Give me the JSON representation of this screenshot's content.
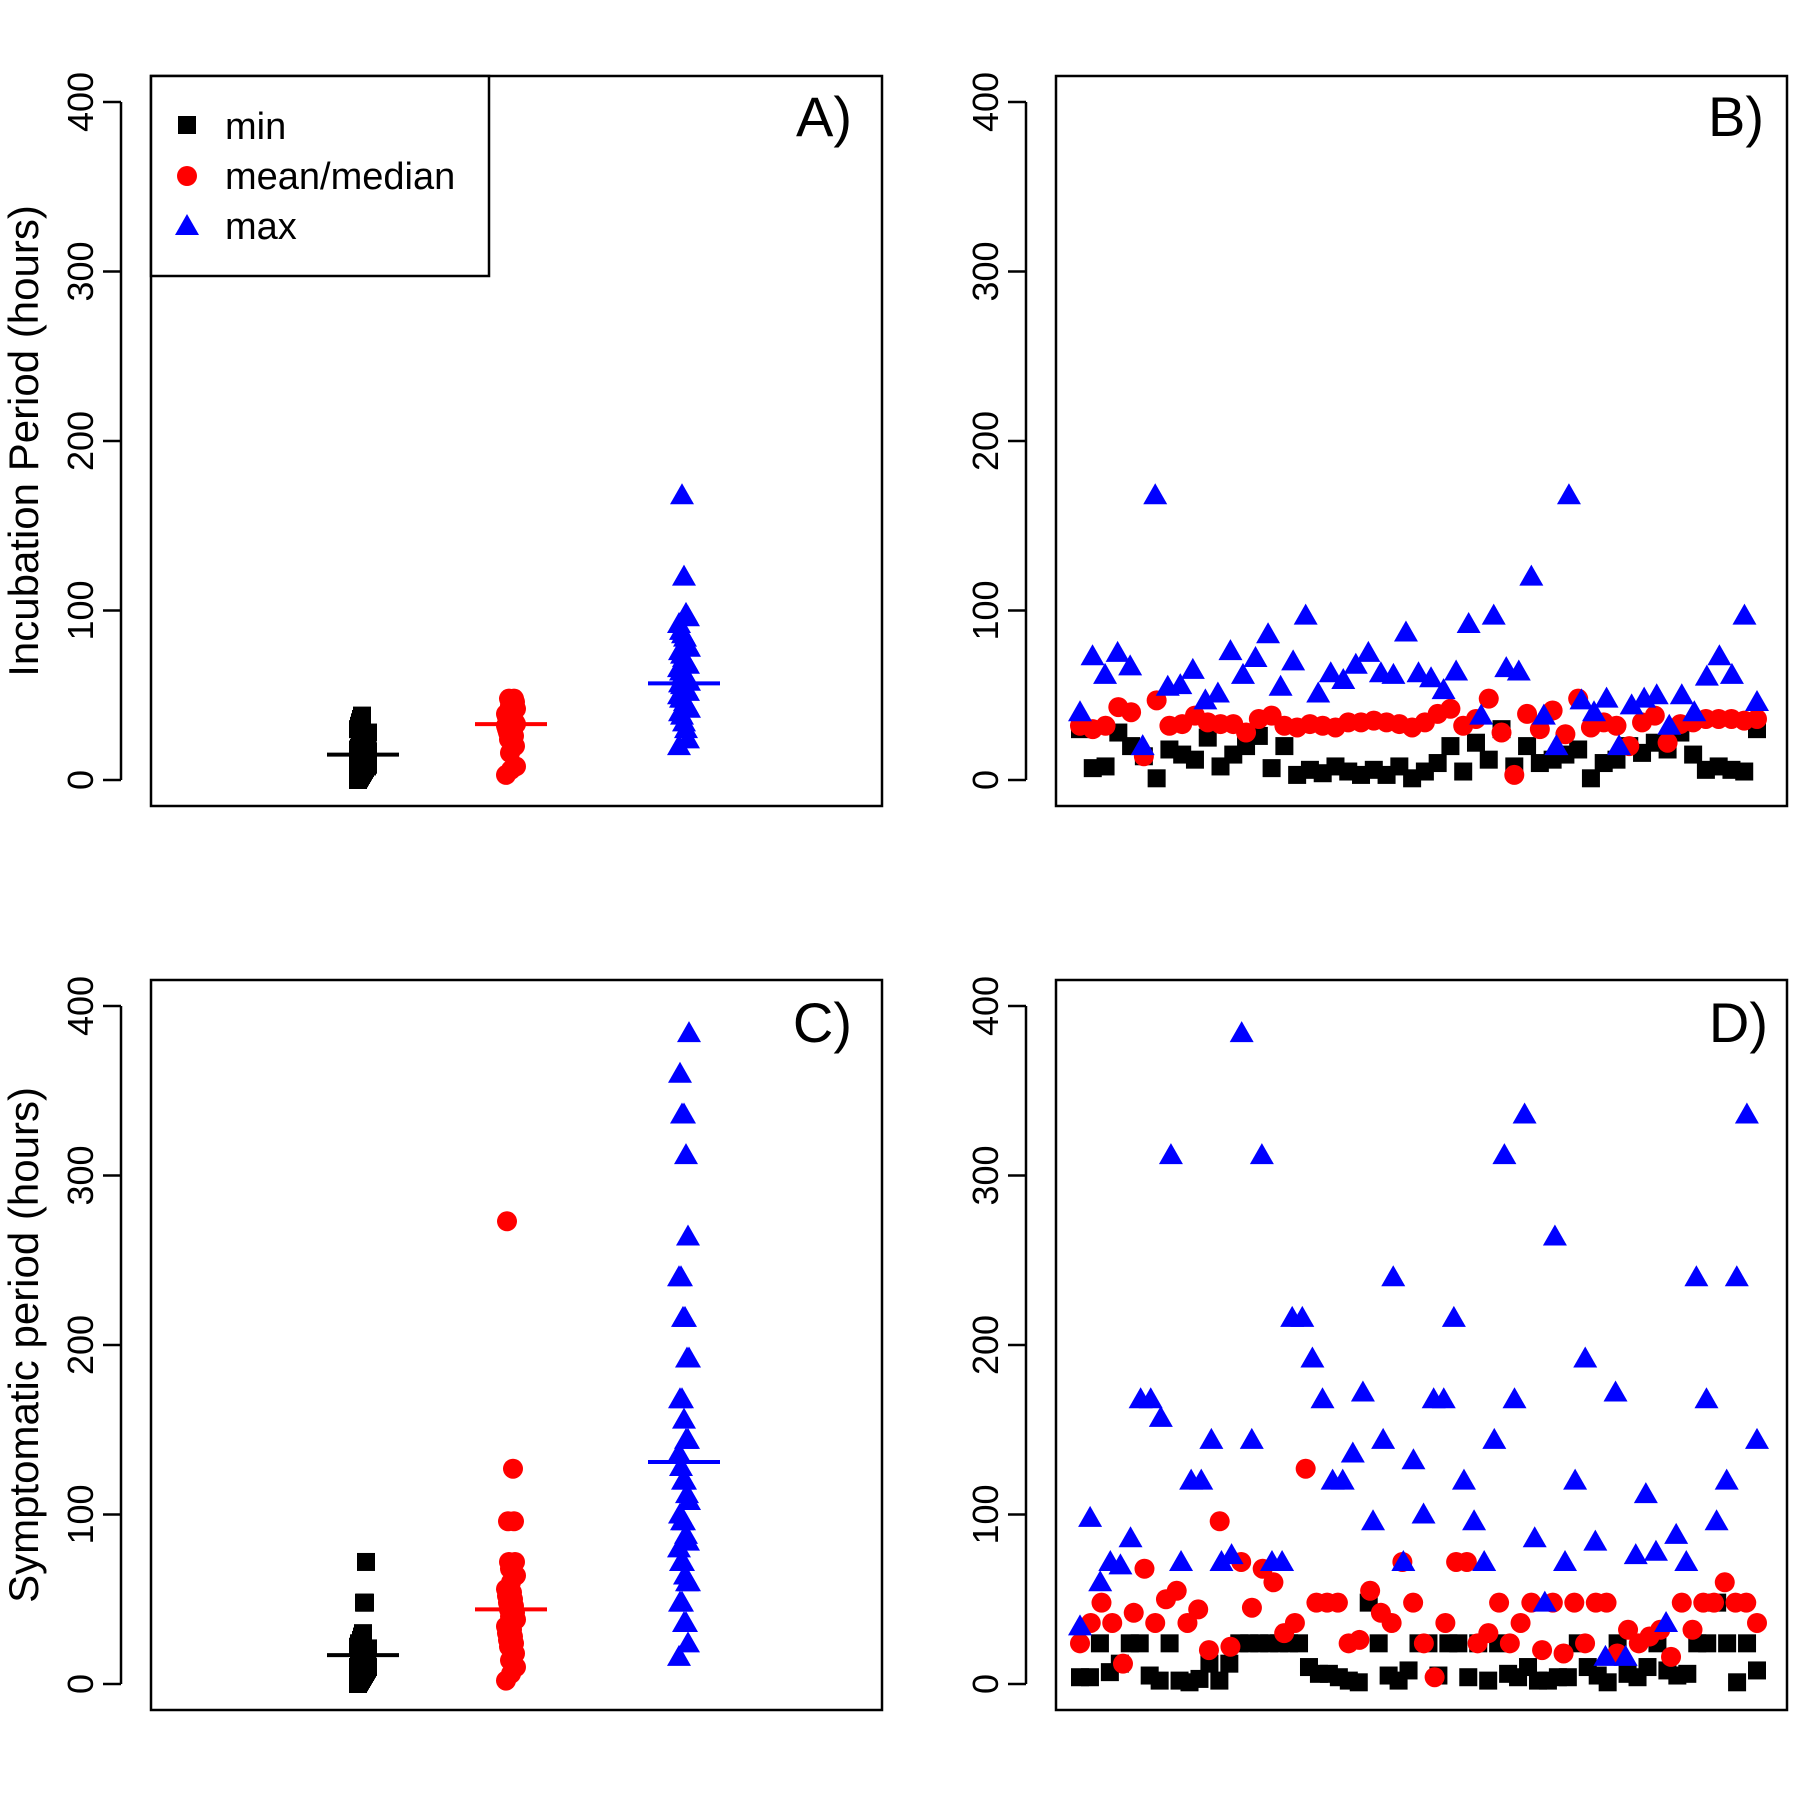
{
  "chart_data": [
    {
      "panel": "A)",
      "type": "scatter",
      "ylabel": "Incubation Period (hours)",
      "ylim": [
        0,
        400
      ],
      "yticks": [
        "0",
        "100",
        "200",
        "300",
        "400"
      ],
      "grid": false,
      "legend": {
        "placement": "top-left",
        "entries": [
          {
            "label": "min",
            "color": "#000000",
            "shape": "square"
          },
          {
            "label": "mean/median",
            "color": "#ff0000",
            "shape": "circle"
          },
          {
            "label": "max",
            "color": "#0000ff",
            "shape": "triangle"
          }
        ]
      },
      "series": [
        {
          "key": "min",
          "color": "#000000",
          "shape": "square",
          "median": 15,
          "values": [
            0,
            1,
            2,
            3,
            4,
            5,
            6,
            7,
            8,
            8,
            9,
            10,
            10,
            11,
            12,
            12,
            13,
            14,
            15,
            15,
            16,
            17,
            18,
            19,
            20,
            20,
            21,
            22,
            23,
            24,
            25,
            26,
            28,
            30,
            32,
            34,
            36,
            38
          ]
        },
        {
          "key": "mean",
          "color": "#ff0000",
          "shape": "circle",
          "median": 33,
          "values": [
            3,
            6,
            8,
            16,
            20,
            24,
            26,
            28,
            29,
            30,
            31,
            32,
            32,
            33,
            33,
            34,
            34,
            35,
            35,
            36,
            37,
            38,
            39,
            40,
            42,
            44,
            46,
            48,
            48
          ]
        },
        {
          "key": "max",
          "color": "#0000ff",
          "shape": "triangle",
          "median": 57,
          "values": [
            20,
            24,
            30,
            34,
            38,
            40,
            42,
            44,
            46,
            48,
            48,
            50,
            52,
            54,
            55,
            56,
            57,
            58,
            60,
            62,
            62,
            64,
            66,
            68,
            70,
            72,
            74,
            76,
            78,
            80,
            84,
            86,
            88,
            92,
            96,
            98,
            120,
            168
          ]
        }
      ]
    },
    {
      "panel": "B)",
      "type": "scatter",
      "ylim": [
        0,
        400
      ],
      "yticks": [
        "0",
        "100",
        "200",
        "300",
        "400"
      ],
      "grid": false,
      "series": [
        {
          "key": "min",
          "color": "#000000",
          "shape": "square",
          "values": [
            30,
            7,
            8,
            28,
            20,
            14,
            1,
            18,
            15,
            12,
            25,
            8,
            15,
            20,
            26,
            7,
            20,
            3,
            6,
            4,
            8,
            5,
            3,
            6,
            3,
            8,
            1,
            5,
            10,
            20,
            5,
            22,
            12,
            30,
            8,
            20,
            10,
            12,
            15,
            18,
            1,
            10,
            12,
            20,
            16,
            22,
            18,
            28,
            15,
            6,
            8,
            6,
            5,
            30
          ]
        },
        {
          "key": "mean",
          "color": "#ff0000",
          "shape": "circle",
          "values": [
            32,
            30,
            32,
            43,
            40,
            14,
            47,
            32,
            33,
            38,
            34,
            33,
            33,
            28,
            36,
            38,
            32,
            31,
            33,
            32,
            31,
            34,
            34,
            35,
            34,
            33,
            31,
            34,
            39,
            42,
            32,
            36,
            48,
            28,
            3,
            39,
            30,
            41,
            27,
            48,
            31,
            34,
            32,
            20,
            34,
            38,
            22,
            33,
            34,
            36,
            36,
            36,
            35,
            36
          ]
        },
        {
          "key": "max",
          "color": "#0000ff",
          "shape": "triangle",
          "values": [
            40,
            73,
            62,
            75,
            67,
            20,
            168,
            55,
            56,
            65,
            47,
            51,
            76,
            62,
            72,
            86,
            55,
            70,
            97,
            51,
            63,
            59,
            68,
            75,
            63,
            62,
            87,
            63,
            60,
            53,
            64,
            92,
            38,
            97,
            66,
            64,
            120,
            38,
            20,
            168,
            47,
            40,
            48,
            20,
            44,
            48,
            50,
            32,
            50,
            40,
            61,
            73,
            62,
            97,
            46
          ]
        }
      ]
    },
    {
      "panel": "C)",
      "type": "scatter",
      "ylabel": "Symptomatic period (hours)",
      "ylim": [
        0,
        400
      ],
      "yticks": [
        "0",
        "100",
        "200",
        "300",
        "400"
      ],
      "grid": false,
      "series": [
        {
          "key": "min",
          "color": "#000000",
          "shape": "square",
          "median": 17,
          "values": [
            0,
            1,
            2,
            3,
            4,
            5,
            6,
            7,
            8,
            9,
            10,
            10,
            11,
            12,
            13,
            14,
            15,
            16,
            17,
            18,
            20,
            21,
            22,
            24,
            24,
            26,
            28,
            30,
            48,
            48,
            72
          ]
        },
        {
          "key": "mean",
          "color": "#ff0000",
          "shape": "circle",
          "median": 44,
          "values": [
            2,
            6,
            10,
            14,
            18,
            22,
            24,
            26,
            28,
            30,
            32,
            34,
            36,
            38,
            40,
            42,
            44,
            46,
            48,
            50,
            52,
            54,
            56,
            60,
            64,
            68,
            72,
            72,
            96,
            96,
            127,
            273
          ]
        },
        {
          "key": "max",
          "color": "#0000ff",
          "shape": "triangle",
          "median": 131,
          "values": [
            16,
            24,
            36,
            36,
            48,
            48,
            60,
            60,
            64,
            72,
            72,
            80,
            84,
            88,
            96,
            96,
            100,
            108,
            112,
            120,
            120,
            128,
            136,
            144,
            144,
            156,
            168,
            168,
            192,
            192,
            216,
            216,
            240,
            240,
            264,
            312,
            336,
            336,
            360,
            384
          ]
        }
      ]
    },
    {
      "panel": "D)",
      "type": "scatter",
      "ylim": [
        0,
        400
      ],
      "yticks": [
        "0",
        "100",
        "200",
        "300",
        "400"
      ],
      "grid": false,
      "series": [
        {
          "key": "min",
          "color": "#000000",
          "shape": "square",
          "values": [
            4,
            4,
            24,
            7,
            12,
            24,
            24,
            5,
            2,
            24,
            2,
            1,
            3,
            12,
            2,
            12,
            24,
            24,
            24,
            24,
            24,
            24,
            24,
            10,
            6,
            6,
            4,
            2,
            1,
            48,
            24,
            5,
            2,
            8,
            24,
            24,
            5,
            24,
            24,
            4,
            24,
            2,
            24,
            6,
            4,
            10,
            2,
            2,
            4,
            4,
            24,
            10,
            5,
            1,
            24,
            6,
            4,
            10,
            24,
            8,
            5,
            6,
            24,
            24,
            48,
            24,
            1,
            24,
            8
          ]
        },
        {
          "key": "mean",
          "color": "#ff0000",
          "shape": "circle",
          "values": [
            24,
            36,
            48,
            36,
            12,
            42,
            68,
            36,
            50,
            55,
            36,
            44,
            20,
            96,
            22,
            72,
            45,
            68,
            60,
            30,
            36,
            127,
            48,
            48,
            48,
            24,
            26,
            55,
            42,
            36,
            72,
            48,
            24,
            4,
            36,
            72,
            72,
            24,
            30,
            48,
            24,
            36,
            48,
            20,
            48,
            18,
            48,
            24,
            48,
            48,
            18,
            32,
            24,
            28,
            32,
            16,
            48,
            32,
            48,
            48,
            60,
            48,
            48,
            36
          ]
        },
        {
          "key": "max",
          "color": "#0000ff",
          "shape": "triangle",
          "values": [
            34,
            98,
            60,
            72,
            70,
            86,
            168,
            168,
            157,
            312,
            72,
            120,
            120,
            144,
            72,
            76,
            384,
            144,
            312,
            72,
            72,
            216,
            216,
            192,
            168,
            120,
            120,
            136,
            172,
            96,
            144,
            240,
            72,
            132,
            100,
            168,
            168,
            216,
            120,
            96,
            72,
            144,
            312,
            168,
            336,
            86,
            48,
            264,
            72,
            120,
            192,
            84,
            16,
            172,
            16,
            76,
            112,
            78,
            36,
            88,
            72,
            240,
            168,
            96,
            120,
            240,
            336,
            144
          ]
        }
      ]
    }
  ]
}
